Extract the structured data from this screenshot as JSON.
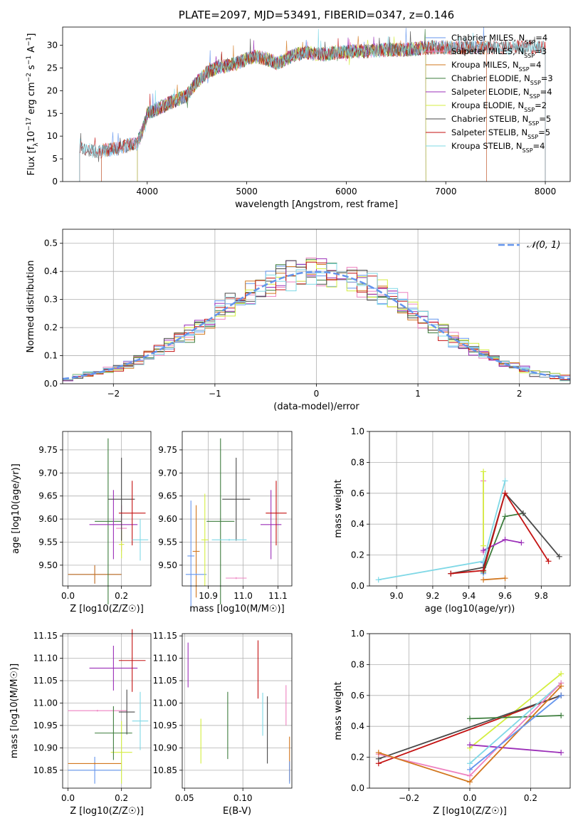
{
  "figure_title": "PLATE=2097, MJD=53491, FIBERID=0347, z=0.146",
  "colors": {
    "chabrier_miles": "#6495ed",
    "salpeter_miles": "#ee82c0",
    "kroupa_miles": "#d2771f",
    "chabrier_elodie": "#3d7d3d",
    "salpeter_elodie": "#9b2fb8",
    "kroupa_elodie": "#d4ee40",
    "chabrier_stelib": "#4a4a4a",
    "salpeter_stelib": "#c41212",
    "kroupa_stelib": "#7fd8e6",
    "normal": "#6495ed"
  },
  "chart_data": [
    {
      "id": "spectrum",
      "type": "line",
      "title": "PLATE=2097, MJD=53491, FIBERID=0347, z=0.146",
      "xlabel": "wavelength [Angstrom, rest frame]",
      "ylabel": "Flux [f_λ 10^-17 erg cm^-2 s^-1 A^-1]",
      "xlim": [
        3150,
        8250
      ],
      "ylim": [
        0,
        34
      ],
      "xticks": [
        4000,
        5000,
        6000,
        7000,
        8000
      ],
      "yticks": [
        0,
        5,
        10,
        15,
        20,
        25,
        30
      ],
      "legend": "top-right",
      "series": [
        {
          "name": "Chabrier MILES, N_SSP=4",
          "color_key": "chabrier_miles",
          "range": [
            3540,
            7410
          ]
        },
        {
          "name": "Salpeter MILES, N_SSP=3",
          "color_key": "salpeter_miles",
          "range": [
            3540,
            7410
          ]
        },
        {
          "name": "Kroupa MILES, N_SSP=4",
          "color_key": "kroupa_miles",
          "range": [
            3540,
            7410
          ]
        },
        {
          "name": "Chabrier ELODIE, N_SSP=3",
          "color_key": "chabrier_elodie",
          "range": [
            3900,
            6800
          ]
        },
        {
          "name": "Salpeter ELODIE, N_SSP=4",
          "color_key": "salpeter_elodie",
          "range": [
            3900,
            6800
          ]
        },
        {
          "name": "Kroupa ELODIE, N_SSP=2",
          "color_key": "kroupa_elodie",
          "range": [
            3900,
            6800
          ]
        },
        {
          "name": "Chabrier STELIB, N_SSP=5",
          "color_key": "chabrier_stelib",
          "range": [
            3320,
            8000
          ]
        },
        {
          "name": "Salpeter STELIB, N_SSP=5",
          "color_key": "salpeter_stelib",
          "range": [
            3320,
            8000
          ]
        },
        {
          "name": "Kroupa STELIB, N_SSP=4",
          "color_key": "kroupa_stelib",
          "range": [
            3320,
            8000
          ]
        }
      ],
      "continuum": {
        "wavelength": [
          3320,
          3400,
          3500,
          3600,
          3700,
          3800,
          3900,
          3950,
          4000,
          4100,
          4200,
          4300,
          4400,
          4500,
          4600,
          4700,
          4800,
          4900,
          5000,
          5100,
          5200,
          5300,
          5400,
          5500,
          5600,
          5700,
          5800,
          5900,
          6000,
          6200,
          6400,
          6600,
          6800,
          7000,
          7200,
          7400,
          7600,
          7800,
          8000
        ],
        "flux": [
          8,
          7,
          6.5,
          7,
          7.2,
          8,
          8.5,
          11,
          15,
          16,
          17,
          18,
          19,
          22,
          24,
          25,
          25.5,
          26,
          27,
          27.5,
          27,
          26,
          27,
          28,
          28.5,
          28,
          28,
          28.5,
          28.5,
          28.7,
          29,
          29,
          29.5,
          29.5,
          29.5,
          29.5,
          29.5,
          29.5,
          29.6
        ]
      }
    },
    {
      "id": "residuals",
      "type": "step",
      "xlabel": "(data-model)/error",
      "ylabel": "Normed distribution",
      "xlim": [
        -2.5,
        2.5
      ],
      "ylim": [
        0,
        0.55
      ],
      "xticks": [
        -2,
        -1,
        0,
        1,
        2
      ],
      "yticks": [
        0.0,
        0.1,
        0.2,
        0.3,
        0.4,
        0.5
      ],
      "legend": "top-right",
      "legend_label": "𝒩(0, 1)",
      "grid": true
    },
    {
      "id": "age_vs_Z",
      "type": "errorbar",
      "xlabel": "Z [log10(Z/Z☉)]",
      "ylabel": "age [log10(age/yr)]",
      "xlim": [
        -0.02,
        0.31
      ],
      "ylim": [
        9.455,
        9.79
      ],
      "xticks": [
        0.0,
        0.2
      ],
      "yticks": [
        9.5,
        9.55,
        9.6,
        9.65,
        9.7,
        9.75
      ],
      "points": [
        {
          "c": "chabrier_miles",
          "x": 0.1,
          "xerr": 0.1,
          "y": 9.48,
          "yerr": 0.02
        },
        {
          "c": "salpeter_miles",
          "x": 0.2,
          "xerr": 0.02,
          "y": 9.58,
          "yerr": 0.05
        },
        {
          "c": "kroupa_miles",
          "x": 0.1,
          "xerr": 0.1,
          "y": 9.48,
          "yerr": 0.02
        },
        {
          "c": "chabrier_elodie",
          "x": 0.15,
          "xerr": 0.05,
          "y": 9.595,
          "yerr": 0.18
        },
        {
          "c": "salpeter_elodie",
          "x": 0.17,
          "xerr": 0.09,
          "y": 9.588,
          "yerr": 0.075
        },
        {
          "c": "kroupa_elodie",
          "x": 0.2,
          "xerr": 0.01,
          "y": 9.545,
          "yerr": 0.03
        },
        {
          "c": "chabrier_stelib",
          "x": 0.2,
          "xerr": 0.05,
          "y": 9.643,
          "yerr": 0.09
        },
        {
          "c": "salpeter_stelib",
          "x": 0.24,
          "xerr": 0.05,
          "y": 9.613,
          "yerr": 0.07
        },
        {
          "c": "kroupa_stelib",
          "x": 0.27,
          "xerr": 0.03,
          "y": 9.555,
          "yerr": 0.045
        }
      ]
    },
    {
      "id": "age_vs_mass",
      "type": "errorbar",
      "xlabel": "mass [log10(M/M☉)]",
      "ylabel": "",
      "xlim": [
        10.825,
        11.14
      ],
      "ylim": [
        9.455,
        9.79
      ],
      "xticks": [
        10.9,
        11.0,
        11.1
      ],
      "yticks": [
        9.5,
        9.55,
        9.6,
        9.65,
        9.7,
        9.75
      ],
      "points": [
        {
          "c": "chabrier_miles",
          "x": 10.85,
          "xerr": 0.01,
          "y": 9.52,
          "yerr": 0.12
        },
        {
          "c": "kroupa_miles",
          "x": 10.865,
          "xerr": 0.01,
          "y": 9.53,
          "yerr": 0.1
        },
        {
          "c": "chabrier_miles",
          "x": 10.865,
          "xerr": 0.03,
          "y": 9.48,
          "yerr": 0.002
        },
        {
          "c": "kroupa_elodie",
          "x": 10.89,
          "xerr": 0.01,
          "y": 9.555,
          "yerr": 0.1
        },
        {
          "c": "chabrier_elodie",
          "x": 10.935,
          "xerr": 0.04,
          "y": 9.595,
          "yerr": 0.18
        },
        {
          "c": "chabrier_stelib",
          "x": 10.98,
          "xerr": 0.04,
          "y": 9.643,
          "yerr": 0.09
        },
        {
          "c": "kroupa_stelib",
          "x": 10.96,
          "xerr": 0.05,
          "y": 9.555,
          "yerr": 0.002
        },
        {
          "c": "salpeter_miles",
          "x": 10.98,
          "xerr": 0.03,
          "y": 9.472,
          "yerr": 0.002
        },
        {
          "c": "salpeter_elodie",
          "x": 11.08,
          "xerr": 0.03,
          "y": 9.588,
          "yerr": 0.075
        },
        {
          "c": "salpeter_stelib",
          "x": 11.095,
          "xerr": 0.03,
          "y": 9.613,
          "yerr": 0.07
        }
      ]
    },
    {
      "id": "weight_vs_age",
      "type": "line",
      "xlabel": "age (log10(age/yr))",
      "ylabel": "mass weight",
      "xlim": [
        8.85,
        9.96
      ],
      "ylim": [
        0,
        1.0
      ],
      "xticks": [
        9.0,
        9.2,
        9.4,
        9.6,
        9.8
      ],
      "yticks": [
        0.0,
        0.2,
        0.4,
        0.6,
        0.8,
        1.0
      ],
      "grid": true,
      "series": [
        {
          "c": "kroupa_miles",
          "x": [
            9.48,
            9.6
          ],
          "y": [
            0.04,
            0.05
          ]
        },
        {
          "c": "chabrier_miles",
          "x": [
            9.48,
            9.48
          ],
          "y": [
            0.08,
            0.15
          ]
        },
        {
          "c": "salpeter_miles",
          "x": [
            9.48,
            9.48
          ],
          "y": [
            0.22,
            0.68
          ]
        },
        {
          "c": "kroupa_elodie",
          "x": [
            9.48,
            9.48
          ],
          "y": [
            0.26,
            0.74
          ]
        },
        {
          "c": "chabrier_elodie",
          "x": [
            9.48,
            9.6,
            9.7
          ],
          "y": [
            0.09,
            0.45,
            0.47
          ]
        },
        {
          "c": "salpeter_elodie",
          "x": [
            9.48,
            9.6,
            9.69
          ],
          "y": [
            0.23,
            0.3,
            0.28
          ]
        },
        {
          "c": "kroupa_stelib",
          "x": [
            8.9,
            9.48,
            9.6
          ],
          "y": [
            0.04,
            0.16,
            0.68
          ]
        },
        {
          "c": "chabrier_stelib",
          "x": [
            9.3,
            9.48,
            9.6,
            9.7,
            9.9
          ],
          "y": [
            0.08,
            0.12,
            0.6,
            0.47,
            0.19
          ]
        },
        {
          "c": "salpeter_stelib",
          "x": [
            9.3,
            9.48,
            9.6,
            9.84
          ],
          "y": [
            0.08,
            0.1,
            0.6,
            0.16
          ]
        }
      ]
    },
    {
      "id": "mass_vs_Z",
      "type": "errorbar",
      "xlabel": "Z [log10(Z/Z☉)]",
      "ylabel": "mass [log10(M/M☉)]",
      "xlim": [
        -0.02,
        0.31
      ],
      "ylim": [
        10.81,
        11.155
      ],
      "xticks": [
        0.0,
        0.2
      ],
      "yticks": [
        10.85,
        10.9,
        10.95,
        11.0,
        11.05,
        11.1,
        11.15
      ],
      "points": [
        {
          "c": "chabrier_miles",
          "x": 0.1,
          "xerr": 0.1,
          "y": 10.85,
          "yerr": 0.03
        },
        {
          "c": "kroupa_miles",
          "x": 0.1,
          "xerr": 0.1,
          "y": 10.865,
          "yerr": 0.002
        },
        {
          "c": "salpeter_miles",
          "x": 0.11,
          "xerr": 0.11,
          "y": 10.983,
          "yerr": 0.002
        },
        {
          "c": "kroupa_elodie",
          "x": 0.2,
          "xerr": 0.04,
          "y": 10.89,
          "yerr": 0.07
        },
        {
          "c": "chabrier_elodie",
          "x": 0.17,
          "xerr": 0.07,
          "y": 10.933,
          "yerr": 0.06
        },
        {
          "c": "chabrier_stelib",
          "x": 0.22,
          "xerr": 0.03,
          "y": 10.98,
          "yerr": 0.05
        },
        {
          "c": "kroupa_stelib",
          "x": 0.27,
          "xerr": 0.03,
          "y": 10.96,
          "yerr": 0.065
        },
        {
          "c": "salpeter_elodie",
          "x": 0.17,
          "xerr": 0.09,
          "y": 11.078,
          "yerr": 0.05
        },
        {
          "c": "salpeter_stelib",
          "x": 0.24,
          "xerr": 0.05,
          "y": 11.095,
          "yerr": 0.07
        }
      ]
    },
    {
      "id": "mass_vs_ebv",
      "type": "errorbar",
      "xlabel": "E(B-V)",
      "ylabel": "",
      "xlim": [
        0.048,
        0.142
      ],
      "ylim": [
        10.81,
        11.155
      ],
      "xticks": [
        0.05,
        0.1
      ],
      "yticks": [
        10.85,
        10.9,
        10.95,
        11.0,
        11.05,
        11.1,
        11.15
      ],
      "points": [
        {
          "c": "salpeter_elodie",
          "x": 0.053,
          "xerr": 0,
          "y": 11.085,
          "yerr": 0.05
        },
        {
          "c": "kroupa_elodie",
          "x": 0.064,
          "xerr": 0,
          "y": 10.915,
          "yerr": 0.05
        },
        {
          "c": "chabrier_elodie",
          "x": 0.087,
          "xerr": 0,
          "y": 10.95,
          "yerr": 0.075
        },
        {
          "c": "salpeter_stelib",
          "x": 0.113,
          "xerr": 0,
          "y": 11.075,
          "yerr": 0.065
        },
        {
          "c": "kroupa_stelib",
          "x": 0.117,
          "xerr": 0,
          "y": 10.975,
          "yerr": 0.048
        },
        {
          "c": "chabrier_stelib",
          "x": 0.121,
          "xerr": 0,
          "y": 10.94,
          "yerr": 0.075
        },
        {
          "c": "salpeter_miles",
          "x": 0.137,
          "xerr": 0,
          "y": 10.995,
          "yerr": 0.045
        },
        {
          "c": "kroupa_miles",
          "x": 0.14,
          "xerr": 0,
          "y": 10.875,
          "yerr": 0.05
        },
        {
          "c": "chabrier_miles",
          "x": 0.14,
          "xerr": 0,
          "y": 10.845,
          "yerr": 0.025
        }
      ]
    },
    {
      "id": "weight_vs_Z",
      "type": "line",
      "xlabel": "Z [log10(Z/Z☉)]",
      "ylabel": "mass weight",
      "xlim": [
        -0.33,
        0.33
      ],
      "ylim": [
        0,
        1.0
      ],
      "xticks": [
        -0.2,
        0.0,
        0.2
      ],
      "yticks": [
        0.0,
        0.2,
        0.4,
        0.6,
        0.8,
        1.0
      ],
      "grid": true,
      "series": [
        {
          "c": "kroupa_elodie",
          "x": [
            0.0,
            0.3
          ],
          "y": [
            0.26,
            0.74
          ]
        },
        {
          "c": "salpeter_stelib",
          "x": [
            -0.3,
            0.3
          ],
          "y": [
            0.16,
            0.6
          ]
        },
        {
          "c": "chabrier_stelib",
          "x": [
            -0.3,
            0.3
          ],
          "y": [
            0.19,
            0.6
          ]
        },
        {
          "c": "chabrier_elodie",
          "x": [
            0.0,
            0.3
          ],
          "y": [
            0.45,
            0.47
          ]
        },
        {
          "c": "salpeter_elodie",
          "x": [
            0.0,
            0.3
          ],
          "y": [
            0.28,
            0.23
          ]
        },
        {
          "c": "kroupa_stelib",
          "x": [
            0.0,
            0.3
          ],
          "y": [
            0.16,
            0.68
          ]
        },
        {
          "c": "salpeter_miles",
          "x": [
            -0.3,
            0.0,
            0.3
          ],
          "y": [
            0.22,
            0.08,
            0.68
          ]
        },
        {
          "c": "kroupa_miles",
          "x": [
            -0.3,
            0.0,
            0.3
          ],
          "y": [
            0.23,
            0.04,
            0.66
          ]
        },
        {
          "c": "chabrier_miles",
          "x": [
            0.0,
            0.3
          ],
          "y": [
            0.12,
            0.6
          ]
        }
      ]
    }
  ]
}
